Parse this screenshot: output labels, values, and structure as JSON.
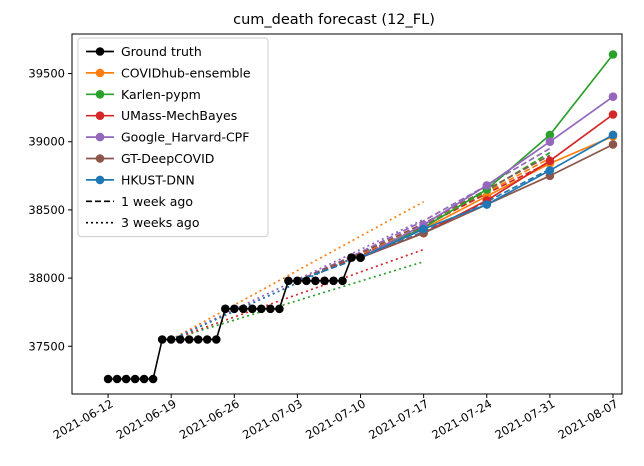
{
  "chart_data": {
    "type": "line",
    "title": "cum_death forecast (12_FL)",
    "xlabel": "",
    "ylabel": "",
    "x_ticks": [
      "2021-06-12",
      "2021-06-19",
      "2021-06-26",
      "2021-07-03",
      "2021-07-10",
      "2021-07-17",
      "2021-07-24",
      "2021-07-31",
      "2021-08-07"
    ],
    "y_ticks": [
      37500,
      38000,
      38500,
      39000,
      39500
    ],
    "xlim": [
      "2021-06-08",
      "2021-08-08"
    ],
    "ylim": [
      37150,
      39790
    ],
    "legend_position": "top-left",
    "legend": [
      {
        "label": "Ground truth",
        "color": "#000000",
        "style": "solid",
        "marker": true
      },
      {
        "label": "COVIDhub-ensemble",
        "color": "#ff7f0e",
        "style": "solid",
        "marker": true
      },
      {
        "label": "Karlen-pypm",
        "color": "#2ca02c",
        "style": "solid",
        "marker": true
      },
      {
        "label": "UMass-MechBayes",
        "color": "#d62728",
        "style": "solid",
        "marker": true
      },
      {
        "label": "Google_Harvard-CPF",
        "color": "#9467bd",
        "style": "solid",
        "marker": true
      },
      {
        "label": "GT-DeepCOVID",
        "color": "#8c564b",
        "style": "solid",
        "marker": true
      },
      {
        "label": "HKUST-DNN",
        "color": "#1f77b4",
        "style": "solid",
        "marker": true
      },
      {
        "label": "1 week ago",
        "color": "#000000",
        "style": "dashed",
        "marker": false
      },
      {
        "label": "3 weeks ago",
        "color": "#000000",
        "style": "dotted",
        "marker": false
      }
    ],
    "ground_truth": {
      "color": "#000000",
      "x": [
        "2021-06-12",
        "2021-06-13",
        "2021-06-14",
        "2021-06-15",
        "2021-06-16",
        "2021-06-17",
        "2021-06-18",
        "2021-06-19",
        "2021-06-20",
        "2021-06-21",
        "2021-06-22",
        "2021-06-23",
        "2021-06-24",
        "2021-06-25",
        "2021-06-26",
        "2021-06-27",
        "2021-06-28",
        "2021-06-29",
        "2021-06-30",
        "2021-07-01",
        "2021-07-02",
        "2021-07-03",
        "2021-07-04",
        "2021-07-05",
        "2021-07-06",
        "2021-07-07",
        "2021-07-08",
        "2021-07-09",
        "2021-07-10"
      ],
      "y": [
        37260,
        37260,
        37260,
        37260,
        37260,
        37260,
        37550,
        37550,
        37550,
        37550,
        37550,
        37550,
        37550,
        37775,
        37775,
        37775,
        37775,
        37775,
        37775,
        37775,
        37980,
        37980,
        37980,
        37980,
        37980,
        37980,
        37980,
        38150,
        38150
      ]
    },
    "series": [
      {
        "name": "COVIDhub-ensemble",
        "color": "#ff7f0e",
        "x": [
          "2021-07-10",
          "2021-07-17",
          "2021-07-24",
          "2021-07-31",
          "2021-08-07"
        ],
        "y": [
          38150,
          38360,
          38600,
          38840,
          39040
        ]
      },
      {
        "name": "Karlen-pypm",
        "color": "#2ca02c",
        "x": [
          "2021-07-10",
          "2021-07-17",
          "2021-07-24",
          "2021-07-31",
          "2021-08-07"
        ],
        "y": [
          38150,
          38370,
          38650,
          39050,
          39640
        ]
      },
      {
        "name": "UMass-MechBayes",
        "color": "#d62728",
        "x": [
          "2021-07-10",
          "2021-07-17",
          "2021-07-24",
          "2021-07-31",
          "2021-08-07"
        ],
        "y": [
          38150,
          38330,
          38570,
          38860,
          39200
        ]
      },
      {
        "name": "Google_Harvard-CPF",
        "color": "#9467bd",
        "x": [
          "2021-07-10",
          "2021-07-17",
          "2021-07-24",
          "2021-07-31",
          "2021-08-07"
        ],
        "y": [
          38150,
          38390,
          38680,
          39000,
          39330
        ]
      },
      {
        "name": "GT-DeepCOVID",
        "color": "#8c564b",
        "x": [
          "2021-07-10",
          "2021-07-17",
          "2021-07-24",
          "2021-07-31",
          "2021-08-07"
        ],
        "y": [
          38150,
          38330,
          38540,
          38750,
          38980
        ]
      },
      {
        "name": "HKUST-DNN",
        "color": "#1f77b4",
        "x": [
          "2021-07-10",
          "2021-07-17",
          "2021-07-24",
          "2021-07-31",
          "2021-08-07"
        ],
        "y": [
          38150,
          38360,
          38540,
          38790,
          39050
        ]
      }
    ],
    "forecasts_1_week_ago": [
      {
        "model": "COVIDhub-ensemble",
        "color": "#ff7f0e",
        "x": [
          "2021-07-03",
          "2021-07-10",
          "2021-07-17",
          "2021-07-24",
          "2021-07-31"
        ],
        "y": [
          37980,
          38170,
          38390,
          38630,
          38880
        ]
      },
      {
        "model": "Karlen-pypm",
        "color": "#2ca02c",
        "x": [
          "2021-07-03",
          "2021-07-10",
          "2021-07-17",
          "2021-07-24",
          "2021-07-31"
        ],
        "y": [
          37980,
          38160,
          38380,
          38640,
          38920
        ]
      },
      {
        "model": "UMass-MechBayes",
        "color": "#d62728",
        "x": [
          "2021-07-03",
          "2021-07-10",
          "2021-07-17",
          "2021-07-24",
          "2021-07-31"
        ],
        "y": [
          37980,
          38160,
          38380,
          38620,
          38850
        ]
      },
      {
        "model": "Google_Harvard-CPF",
        "color": "#9467bd",
        "x": [
          "2021-07-03",
          "2021-07-10",
          "2021-07-17",
          "2021-07-24",
          "2021-07-31"
        ],
        "y": [
          37980,
          38190,
          38420,
          38680,
          38950
        ]
      },
      {
        "model": "GT-DeepCOVID",
        "color": "#8c564b",
        "x": [
          "2021-07-03",
          "2021-07-10",
          "2021-07-17",
          "2021-07-24",
          "2021-07-31"
        ],
        "y": [
          37980,
          38180,
          38400,
          38650,
          38900
        ]
      },
      {
        "model": "HKUST-DNN",
        "color": "#1f77b4",
        "x": [
          "2021-07-03",
          "2021-07-10",
          "2021-07-17",
          "2021-07-24",
          "2021-07-31"
        ],
        "y": [
          37980,
          38150,
          38340,
          38560,
          38800
        ]
      }
    ],
    "forecasts_3_weeks_ago": [
      {
        "model": "COVIDhub-ensemble",
        "color": "#ff7f0e",
        "x": [
          "2021-06-19",
          "2021-07-17"
        ],
        "y": [
          37550,
          38560
        ]
      },
      {
        "model": "Karlen-pypm",
        "color": "#2ca02c",
        "x": [
          "2021-06-19",
          "2021-07-17"
        ],
        "y": [
          37550,
          38120
        ]
      },
      {
        "model": "UMass-MechBayes",
        "color": "#d62728",
        "x": [
          "2021-06-19",
          "2021-07-17"
        ],
        "y": [
          37550,
          38210
        ]
      },
      {
        "model": "Google_Harvard-CPF",
        "color": "#9467bd",
        "x": [
          "2021-06-19",
          "2021-07-17"
        ],
        "y": [
          37550,
          38430
        ]
      },
      {
        "model": "GT-DeepCOVID",
        "color": "#8c564b",
        "x": [
          "2021-06-19",
          "2021-07-17"
        ],
        "y": [
          37550,
          38380
        ]
      },
      {
        "model": "HKUST-DNN",
        "color": "#1f77b4",
        "x": [
          "2021-06-19",
          "2021-07-17"
        ],
        "y": [
          37550,
          38380
        ]
      }
    ]
  }
}
